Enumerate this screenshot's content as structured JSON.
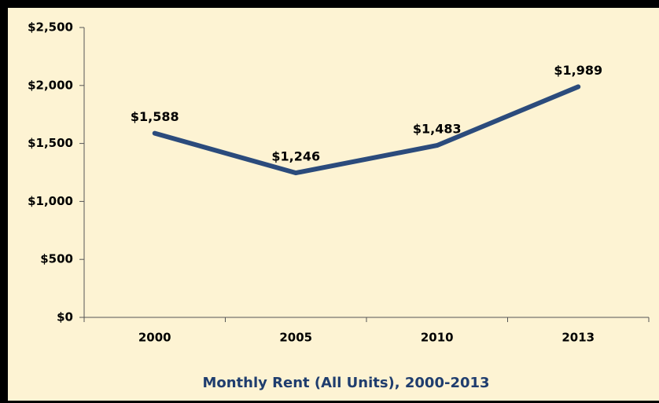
{
  "chart_data": {
    "type": "line",
    "title": "Monthly Rent (All Units), 2000-2013",
    "categories": [
      "2000",
      "2005",
      "2010",
      "2013"
    ],
    "values": [
      1588,
      1246,
      1483,
      1989
    ],
    "value_labels": [
      "$1,588",
      "$1,246",
      "$1,483",
      "$1,989"
    ],
    "color": "#2b4b7c",
    "ylim": [
      0,
      2500
    ],
    "yticks": [
      {
        "value": 0,
        "label": "$0"
      },
      {
        "value": 500,
        "label": "$500"
      },
      {
        "value": 1000,
        "label": "$1,000"
      },
      {
        "value": 1500,
        "label": "$1,500"
      },
      {
        "value": 2000,
        "label": "$2,000"
      },
      {
        "value": 2500,
        "label": "$2,500"
      }
    ],
    "grid": false
  }
}
